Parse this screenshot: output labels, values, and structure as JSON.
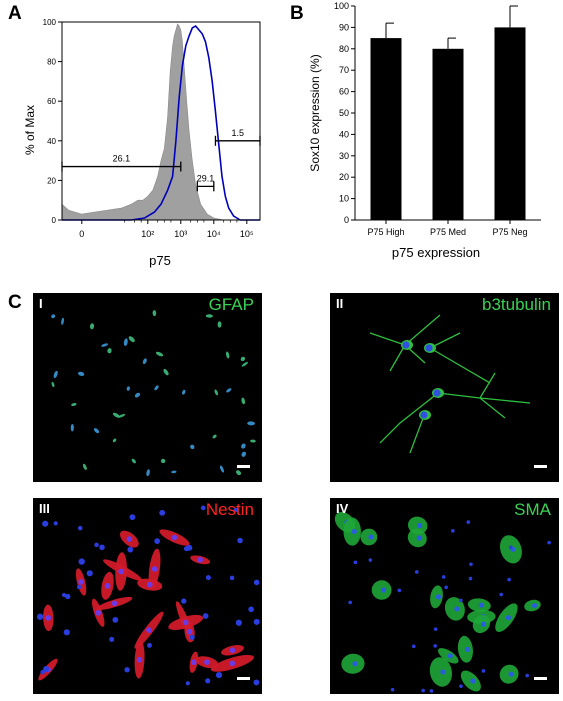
{
  "panel_labels": {
    "a": "A",
    "b": "B",
    "c": "C"
  },
  "chart_data": [
    {
      "type": "area",
      "panel": "A",
      "xlabel": "p75",
      "ylabel": "% of Max",
      "xscale": "biexponential",
      "x_tick_labels": [
        "0",
        "10²",
        "10³",
        "10⁴",
        "10⁵"
      ],
      "y_tick_labels": [
        "0",
        "20",
        "40",
        "60",
        "80",
        "100"
      ],
      "ylim": [
        0,
        100
      ],
      "series": [
        {
          "color": "#a0a0a0",
          "fill": true,
          "points": [
            [
              -0.6,
              8
            ],
            [
              -0.4,
              5
            ],
            [
              -0.2,
              4
            ],
            [
              0,
              3
            ],
            [
              0.4,
              4
            ],
            [
              0.8,
              5
            ],
            [
              1.2,
              6
            ],
            [
              1.5,
              8
            ],
            [
              1.7,
              10
            ],
            [
              1.85,
              10
            ],
            [
              2.0,
              12
            ],
            [
              2.15,
              15
            ],
            [
              2.3,
              22
            ],
            [
              2.4,
              30
            ],
            [
              2.5,
              36
            ],
            [
              2.6,
              52
            ],
            [
              2.68,
              75
            ],
            [
              2.75,
              88
            ],
            [
              2.8,
              93
            ],
            [
              2.85,
              96
            ],
            [
              2.9,
              99
            ],
            [
              2.95,
              98
            ],
            [
              3.0,
              96
            ],
            [
              3.05,
              90
            ],
            [
              3.1,
              78
            ],
            [
              3.18,
              60
            ],
            [
              3.25,
              45
            ],
            [
              3.35,
              30
            ],
            [
              3.45,
              18
            ],
            [
              3.6,
              8
            ],
            [
              3.8,
              3
            ],
            [
              4.0,
              1
            ],
            [
              4.3,
              0
            ]
          ]
        },
        {
          "color": "#0000bb",
          "fill": false,
          "points": [
            [
              -0.6,
              0
            ],
            [
              1.5,
              0
            ],
            [
              1.9,
              1
            ],
            [
              2.2,
              4
            ],
            [
              2.4,
              8
            ],
            [
              2.6,
              15
            ],
            [
              2.75,
              22
            ],
            [
              2.85,
              40
            ],
            [
              2.95,
              62
            ],
            [
              3.05,
              78
            ],
            [
              3.15,
              88
            ],
            [
              3.25,
              93
            ],
            [
              3.35,
              97
            ],
            [
              3.45,
              98
            ],
            [
              3.55,
              96
            ],
            [
              3.65,
              94
            ],
            [
              3.75,
              90
            ],
            [
              3.85,
              82
            ],
            [
              3.95,
              70
            ],
            [
              4.05,
              55
            ],
            [
              4.15,
              38
            ],
            [
              4.25,
              22
            ],
            [
              4.35,
              12
            ],
            [
              4.45,
              6
            ],
            [
              4.6,
              2
            ],
            [
              4.8,
              0
            ],
            [
              5.4,
              0
            ]
          ]
        }
      ],
      "gates": [
        {
          "label": "26.1",
          "x_range": [
            -0.6,
            3.0
          ],
          "y": 27
        },
        {
          "label": "29.1",
          "x_range": [
            3.5,
            4.0
          ],
          "y": 17
        },
        {
          "label": "1.5",
          "x_range": [
            4.05,
            5.4
          ],
          "y": 40
        }
      ]
    },
    {
      "type": "bar",
      "panel": "B",
      "categories": [
        "P75 High",
        "P75 Med",
        "P75 Neg"
      ],
      "values": [
        85,
        80,
        90
      ],
      "error": [
        7,
        5,
        10
      ],
      "xlabel": "p75 expression",
      "ylabel": "Sox10 expression (%)",
      "ylim": [
        0,
        100
      ],
      "ytick_step": 10,
      "bar_color": "#000000"
    }
  ],
  "micrographs": [
    {
      "numeral": "I",
      "stain": "GFAP",
      "stain_color": "#39d353"
    },
    {
      "numeral": "II",
      "stain": "b3tubulin",
      "stain_color": "#39d353"
    },
    {
      "numeral": "III",
      "stain": "Nestin",
      "stain_color": "#ff2222"
    },
    {
      "numeral": "IV",
      "stain": "SMA",
      "stain_color": "#39d353"
    }
  ]
}
